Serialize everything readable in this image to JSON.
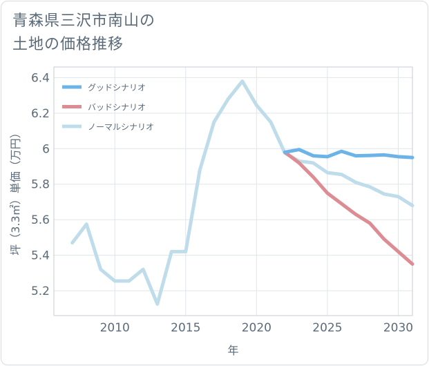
{
  "title_line1": "青森県三沢市南山の",
  "title_line2": "土地の価格推移",
  "chart_data": {
    "type": "line",
    "xlabel": "年",
    "ylabel": "坪（3.3㎡）単価（万円）",
    "xlim": [
      2005.7,
      2031
    ],
    "ylim": [
      5.06,
      6.46
    ],
    "xticks": [
      2010,
      2015,
      2020,
      2025,
      2030
    ],
    "xtick_labels": [
      "2010",
      "2015",
      "2020",
      "2025",
      "2030"
    ],
    "yticks": [
      5.2,
      5.4,
      5.6,
      5.8,
      6.0,
      6.2,
      6.4
    ],
    "ytick_labels": [
      "5.2",
      "5.4",
      "5.6",
      "5.8",
      "6",
      "6.2",
      "6.4"
    ],
    "grid": true,
    "legend_position": "top-left",
    "series": [
      {
        "name": "グッドシナリオ",
        "color": "#6cb4e8",
        "x": [
          2022,
          2023,
          2024,
          2025,
          2026,
          2027,
          2028,
          2029,
          2030,
          2031
        ],
        "y": [
          5.98,
          5.995,
          5.96,
          5.955,
          5.985,
          5.96,
          5.962,
          5.965,
          5.955,
          5.95
        ]
      },
      {
        "name": "バッドシナリオ",
        "color": "#de8c94",
        "x": [
          2022,
          2023,
          2024,
          2025,
          2026,
          2027,
          2028,
          2029,
          2030,
          2031
        ],
        "y": [
          5.98,
          5.92,
          5.84,
          5.75,
          5.69,
          5.63,
          5.58,
          5.49,
          5.42,
          5.35
        ]
      },
      {
        "name": "ノーマルシナリオ",
        "color": "#bfdcea",
        "x": [
          2007,
          2008,
          2009,
          2010,
          2011,
          2012,
          2013,
          2014,
          2015,
          2016,
          2017,
          2018,
          2019,
          2020,
          2021,
          2022,
          2023,
          2024,
          2025,
          2026,
          2027,
          2028,
          2029,
          2030,
          2031
        ],
        "y": [
          5.47,
          5.575,
          5.32,
          5.255,
          5.255,
          5.32,
          5.125,
          5.42,
          5.42,
          5.88,
          6.15,
          6.28,
          6.38,
          6.245,
          6.15,
          5.975,
          5.93,
          5.92,
          5.865,
          5.855,
          5.81,
          5.785,
          5.745,
          5.73,
          5.68
        ]
      }
    ]
  }
}
